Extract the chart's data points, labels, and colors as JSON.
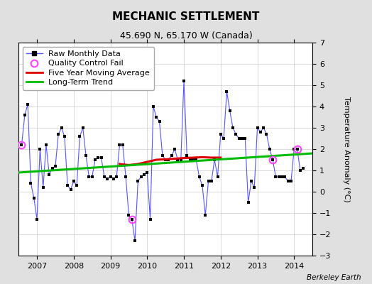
{
  "title": "MECHANIC SETTLEMENT",
  "subtitle": "45.690 N, 65.170 W (Canada)",
  "ylabel": "Temperature Anomaly (°C)",
  "attribution": "Berkeley Earth",
  "xlim": [
    2006.5,
    2014.5
  ],
  "ylim": [
    -3,
    7
  ],
  "yticks": [
    -3,
    -2,
    -1,
    0,
    1,
    2,
    3,
    4,
    5,
    6,
    7
  ],
  "xticks": [
    2007,
    2008,
    2009,
    2010,
    2011,
    2012,
    2013,
    2014
  ],
  "background_color": "#e0e0e0",
  "plot_background": "#ffffff",
  "raw_data_x": [
    2006.583,
    2006.667,
    2006.75,
    2006.833,
    2006.917,
    2007.0,
    2007.083,
    2007.167,
    2007.25,
    2007.333,
    2007.417,
    2007.5,
    2007.583,
    2007.667,
    2007.75,
    2007.833,
    2007.917,
    2008.0,
    2008.083,
    2008.167,
    2008.25,
    2008.333,
    2008.417,
    2008.5,
    2008.583,
    2008.667,
    2008.75,
    2008.833,
    2008.917,
    2009.0,
    2009.083,
    2009.167,
    2009.25,
    2009.333,
    2009.417,
    2009.5,
    2009.583,
    2009.667,
    2009.75,
    2009.833,
    2009.917,
    2010.0,
    2010.083,
    2010.167,
    2010.25,
    2010.333,
    2010.417,
    2010.5,
    2010.583,
    2010.667,
    2010.75,
    2010.833,
    2010.917,
    2011.0,
    2011.083,
    2011.167,
    2011.25,
    2011.333,
    2011.417,
    2011.5,
    2011.583,
    2011.667,
    2011.75,
    2011.833,
    2011.917,
    2012.0,
    2012.083,
    2012.167,
    2012.25,
    2012.333,
    2012.417,
    2012.5,
    2012.583,
    2012.667,
    2012.75,
    2012.833,
    2012.917,
    2013.0,
    2013.083,
    2013.167,
    2013.25,
    2013.333,
    2013.417,
    2013.5,
    2013.583,
    2013.667,
    2013.75,
    2013.833,
    2013.917,
    2014.0,
    2014.083,
    2014.167,
    2014.25
  ],
  "raw_data_y": [
    2.2,
    3.6,
    4.1,
    0.4,
    -0.3,
    -1.3,
    2.0,
    0.2,
    2.2,
    0.8,
    1.1,
    1.2,
    2.7,
    3.0,
    2.6,
    0.3,
    0.1,
    0.5,
    0.3,
    2.6,
    3.0,
    1.7,
    0.7,
    0.7,
    1.5,
    1.6,
    1.6,
    0.7,
    0.6,
    0.7,
    0.6,
    0.7,
    2.2,
    2.2,
    0.7,
    -1.1,
    -1.3,
    -2.3,
    0.5,
    0.7,
    0.8,
    0.9,
    -1.3,
    4.0,
    3.5,
    3.3,
    1.7,
    1.5,
    1.5,
    1.7,
    2.0,
    1.5,
    1.5,
    5.2,
    1.7,
    1.5,
    1.5,
    1.5,
    0.7,
    0.3,
    -1.1,
    0.5,
    0.5,
    1.5,
    0.7,
    2.7,
    2.5,
    4.7,
    3.8,
    3.0,
    2.7,
    2.5,
    2.5,
    2.5,
    -0.5,
    0.5,
    0.2,
    3.0,
    2.8,
    3.0,
    2.7,
    2.0,
    1.5,
    0.7,
    0.7,
    0.7,
    0.7,
    0.5,
    0.5,
    2.0,
    2.0,
    1.0,
    1.1
  ],
  "qc_fail_points": [
    [
      2006.583,
      2.2
    ],
    [
      2009.583,
      -1.3
    ],
    [
      2013.417,
      1.5
    ],
    [
      2014.083,
      2.0
    ]
  ],
  "moving_avg_x": [
    2009.25,
    2009.5,
    2009.75,
    2010.0,
    2010.25,
    2010.5,
    2010.75,
    2011.0,
    2011.25,
    2011.5,
    2011.75,
    2012.0
  ],
  "moving_avg_y": [
    1.3,
    1.25,
    1.3,
    1.4,
    1.5,
    1.52,
    1.55,
    1.58,
    1.6,
    1.62,
    1.6,
    1.6
  ],
  "trend_x": [
    2006.5,
    2014.5
  ],
  "trend_y": [
    0.9,
    1.8
  ],
  "line_color": "#5555ff",
  "marker_color": "#000000",
  "moving_avg_color": "#dd0000",
  "trend_color": "#00bb00",
  "qc_color": "#ff44ff",
  "title_fontsize": 11,
  "subtitle_fontsize": 9,
  "tick_fontsize": 8,
  "legend_fontsize": 8,
  "ylabel_fontsize": 8
}
